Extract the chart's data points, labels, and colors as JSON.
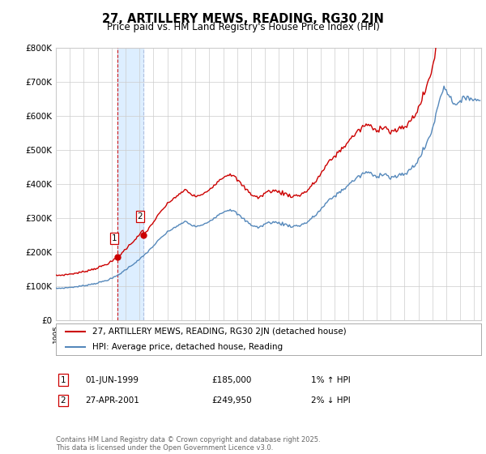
{
  "title": "27, ARTILLERY MEWS, READING, RG30 2JN",
  "subtitle": "Price paid vs. HM Land Registry's House Price Index (HPI)",
  "legend_line1": "27, ARTILLERY MEWS, READING, RG30 2JN (detached house)",
  "legend_line2": "HPI: Average price, detached house, Reading",
  "sale1_date": "01-JUN-1999",
  "sale1_price": 185000,
  "sale1_hpi_pct": "1% ↑ HPI",
  "sale2_date": "27-APR-2001",
  "sale2_price": 249950,
  "sale2_hpi_pct": "2% ↓ HPI",
  "footnote": "Contains HM Land Registry data © Crown copyright and database right 2025.\nThis data is licensed under the Open Government Licence v3.0.",
  "hpi_color": "#5588bb",
  "price_color": "#cc0000",
  "vline1_color": "#cc0000",
  "vline2_color": "#aabbdd",
  "span_color": "#ddeeff",
  "background_color": "#ffffff",
  "grid_color": "#cccccc",
  "ylim": [
    0,
    800000
  ],
  "yticks": [
    0,
    100000,
    200000,
    300000,
    400000,
    500000,
    600000,
    700000,
    800000
  ],
  "ytick_labels": [
    "£0",
    "£100K",
    "£200K",
    "£300K",
    "£400K",
    "£500K",
    "£600K",
    "£700K",
    "£800K"
  ],
  "xmin": 1995,
  "xmax": 2025.5,
  "sale1_year": 1999.4167,
  "sale2_year": 2001.2917
}
